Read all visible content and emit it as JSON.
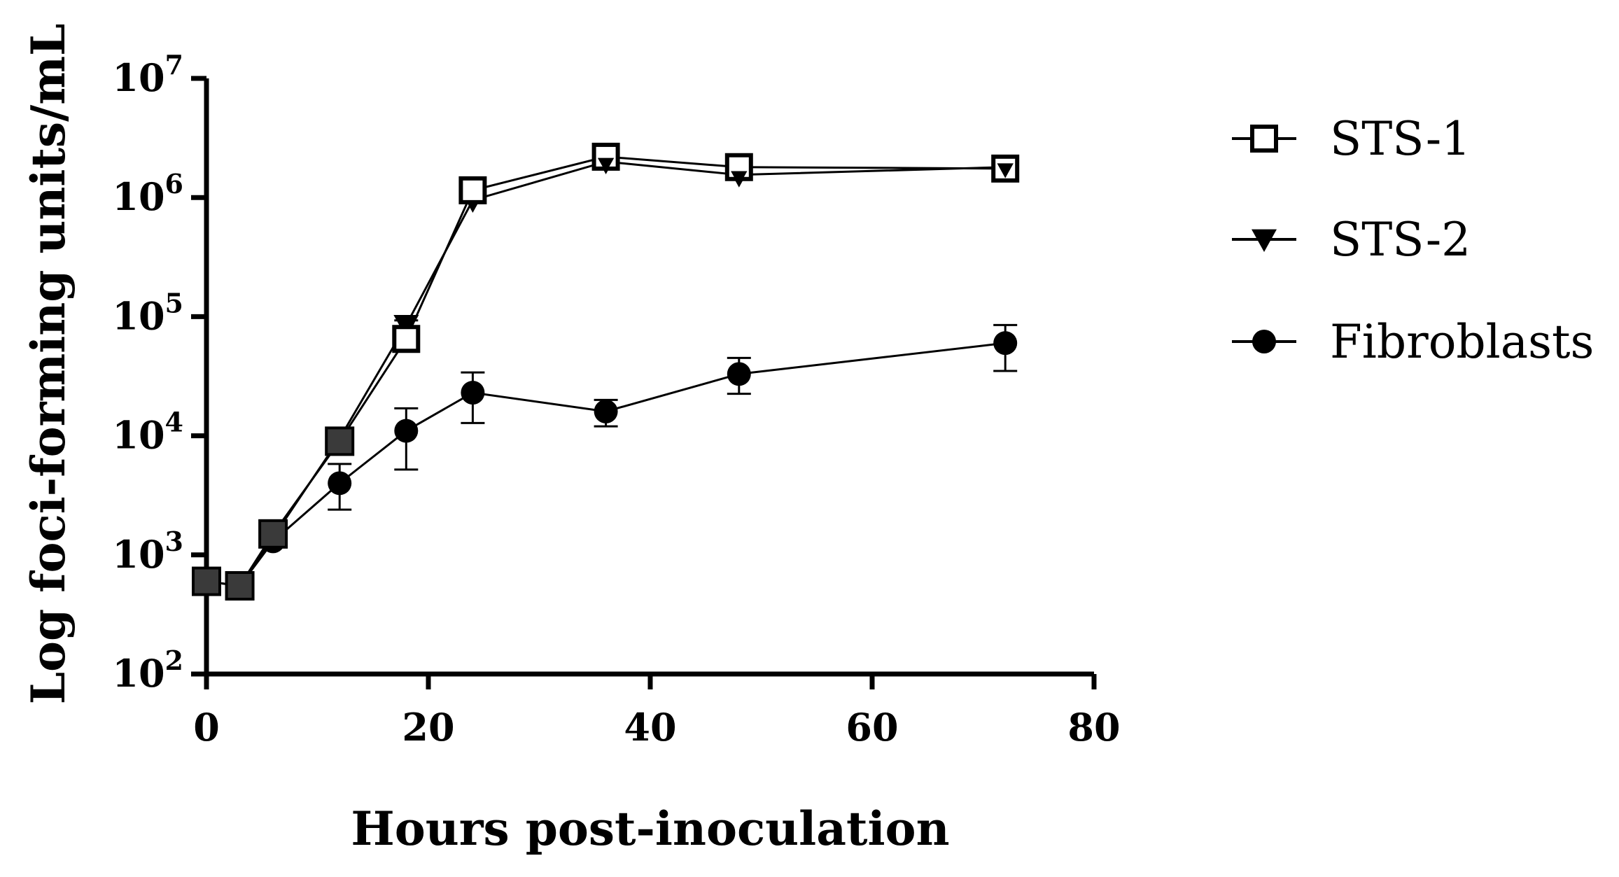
{
  "chart_data": {
    "type": "line",
    "title": "",
    "xlabel": "Hours post-inoculation",
    "ylabel": "Log foci-forming units/mL",
    "xlim": [
      0,
      80
    ],
    "xticks": [
      "0",
      "20",
      "40",
      "60",
      "80"
    ],
    "yscale": "log",
    "ylim": [
      100,
      10000000
    ],
    "yticks": [
      {
        "base": "10",
        "exp": "2"
      },
      {
        "base": "10",
        "exp": "3"
      },
      {
        "base": "10",
        "exp": "4"
      },
      {
        "base": "10",
        "exp": "5"
      },
      {
        "base": "10",
        "exp": "6"
      },
      {
        "base": "10",
        "exp": "7"
      }
    ],
    "grid": false,
    "legend_position": "right",
    "x": [
      0,
      3,
      6,
      12,
      18,
      24,
      36,
      48,
      72
    ],
    "series": [
      {
        "name": "STS-1",
        "marker": "open-square",
        "values": [
          600,
          550,
          1500,
          9000,
          65000,
          1150000,
          2200000,
          1800000,
          1750000
        ]
      },
      {
        "name": "STS-2",
        "marker": "filled-triangle-down",
        "values": [
          600,
          550,
          1400,
          9500,
          85000,
          950000,
          2000000,
          1550000,
          1800000
        ],
        "error": [
          0,
          0,
          0,
          0,
          8000,
          0,
          0,
          0,
          0
        ]
      },
      {
        "name": "Fibroblasts",
        "marker": "filled-circle",
        "values": [
          600,
          550,
          1300,
          4000,
          11000,
          23000,
          16000,
          33000,
          60000
        ],
        "err_low": [
          600,
          550,
          1300,
          2400,
          5200,
          12800,
          12000,
          22500,
          35000
        ],
        "err_high": [
          600,
          550,
          1300,
          5800,
          17000,
          34000,
          20000,
          45000,
          85000
        ]
      }
    ]
  }
}
